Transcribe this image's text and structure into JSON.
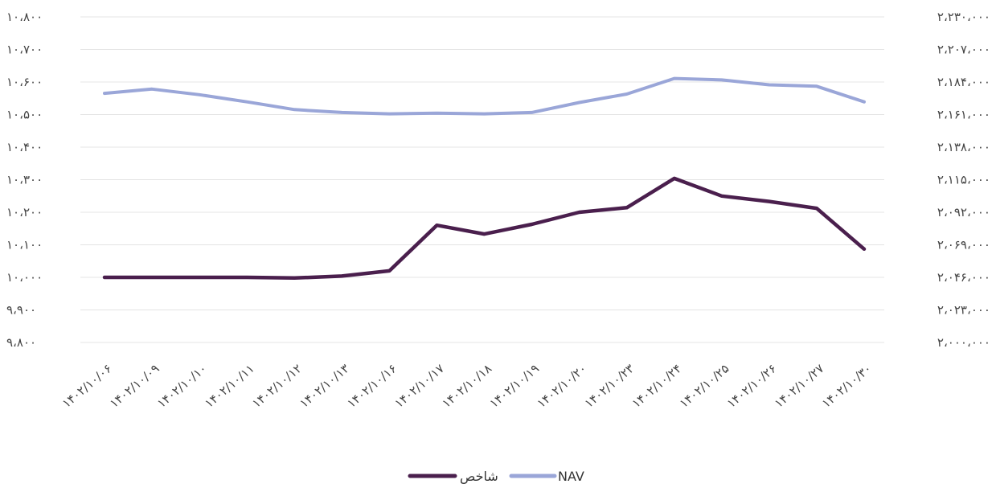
{
  "chart_data": {
    "type": "line",
    "categories": [
      "۱۴۰۲/۱۰/۰۶",
      "۱۴۰۲/۱۰/۰۹",
      "۱۴۰۲/۱۰/۱۰",
      "۱۴۰۲/۱۰/۱۱",
      "۱۴۰۲/۱۰/۱۲",
      "۱۴۰۲/۱۰/۱۳",
      "۱۴۰۲/۱۰/۱۶",
      "۱۴۰۲/۱۰/۱۷",
      "۱۴۰۲/۱۰/۱۸",
      "۱۴۰۲/۱۰/۱۹",
      "۱۴۰۲/۱۰/۲۰",
      "۱۴۰۲/۱۰/۲۳",
      "۱۴۰۲/۱۰/۲۴",
      "۱۴۰۲/۱۰/۲۵",
      "۱۴۰۲/۱۰/۲۶",
      "۱۴۰۲/۱۰/۲۷",
      "۱۴۰۲/۱۰/۳۰"
    ],
    "series": [
      {
        "name": "NAV",
        "axis": "right",
        "color": "#9aa6d8",
        "values": [
          2176000,
          2179000,
          2175000,
          2170000,
          2164500,
          2162500,
          2161500,
          2162000,
          2161500,
          2162500,
          2169500,
          2175500,
          2186500,
          2185500,
          2182000,
          2181000,
          2170000
        ]
      },
      {
        "name": "شاخص",
        "axis": "left",
        "color": "#4a1f4d",
        "values": [
          10000,
          10000,
          10000,
          10000,
          9998,
          10004,
          10020,
          10160,
          10133,
          10163,
          10200,
          10214,
          10304,
          10250,
          10233,
          10212,
          10087
        ]
      }
    ],
    "y_left": {
      "range": [
        9800,
        10800
      ],
      "tick_labels": [
        "۹،۸۰۰",
        "۹،۹۰۰",
        "۱۰،۰۰۰",
        "۱۰،۱۰۰",
        "۱۰،۲۰۰",
        "۱۰،۳۰۰",
        "۱۰،۴۰۰",
        "۱۰،۵۰۰",
        "۱۰،۶۰۰",
        "۱۰،۷۰۰",
        "۱۰،۸۰۰"
      ]
    },
    "y_right": {
      "range": [
        2000000,
        2230000
      ],
      "tick_labels": [
        "۲،۰۰۰،۰۰۰",
        "۲،۰۲۳،۰۰۰",
        "۲،۰۴۶،۰۰۰",
        "۲،۰۶۹،۰۰۰",
        "۲،۰۹۲،۰۰۰",
        "۲،۱۱۵،۰۰۰",
        "۲،۱۳۸،۰۰۰",
        "۲،۱۶۱،۰۰۰",
        "۲،۱۸۴،۰۰۰",
        "۲،۲۰۷،۰۰۰",
        "۲،۲۳۰،۰۰۰"
      ]
    },
    "grid": true,
    "legend_position": "bottom-center",
    "legend": [
      "شاخص",
      "NAV"
    ]
  }
}
